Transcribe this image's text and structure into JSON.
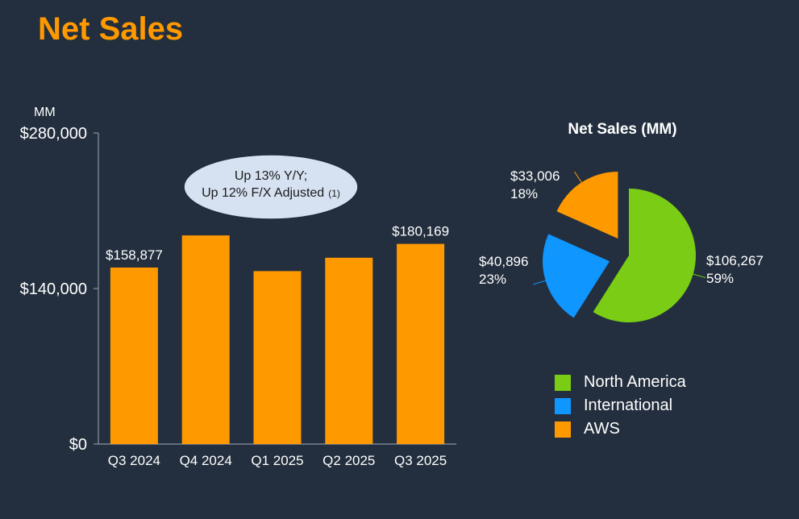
{
  "title": "Net Sales",
  "colors": {
    "background": "#232f3e",
    "title": "#ff9900",
    "bar": "#ff9900",
    "axis": "#8a95a3",
    "callout_fill": "#d6e2f2",
    "callout_stroke": "#1f2a3a"
  },
  "chart_data": [
    {
      "type": "bar",
      "unit_label": "MM",
      "categories": [
        "Q3 2024",
        "Q4 2024",
        "Q1 2025",
        "Q2 2025",
        "Q3 2025"
      ],
      "values": [
        158877,
        187792,
        155667,
        167702,
        180169
      ],
      "data_labels": [
        "$158,877",
        "",
        "",
        "",
        "$180,169"
      ],
      "ylim": [
        0,
        280000
      ],
      "yticks": [
        0,
        140000,
        280000
      ],
      "ytick_labels": [
        "$0",
        "$140,000",
        "$280,000"
      ],
      "callout": {
        "line1": "Up 13% Y/Y;",
        "line2": "Up 12% F/X Adjusted",
        "footnote": "(1)"
      }
    },
    {
      "type": "pie",
      "title": "Net Sales (MM)",
      "slices": [
        {
          "name": "North America",
          "value": 106267,
          "value_label": "$106,267",
          "pct_label": "59%",
          "color": "#7acc14"
        },
        {
          "name": "International",
          "value": 40896,
          "value_label": "$40,896",
          "pct_label": "23%",
          "color": "#0f96ff"
        },
        {
          "name": "AWS",
          "value": 33006,
          "value_label": "$33,006",
          "pct_label": "18%",
          "color": "#ff9900"
        }
      ]
    }
  ]
}
